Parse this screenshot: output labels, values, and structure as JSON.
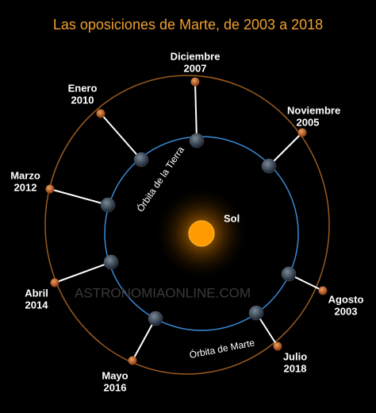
{
  "title": "Las oposiciones de Marte, de 2003 a 2018",
  "sun_label": "Sol",
  "earth_orbit_label": "Órbita de la Tierra",
  "mars_orbit_label": "Órbita de Marte",
  "watermark": "ASTRONOMIAONLINE.COM",
  "oppositions": [
    {
      "month": "Diciembre",
      "year": "2007"
    },
    {
      "month": "Noviembre",
      "year": "2005"
    },
    {
      "month": "Agosto",
      "year": "2003"
    },
    {
      "month": "Julio",
      "year": "2018"
    },
    {
      "month": "Mayo",
      "year": "2016"
    },
    {
      "month": "Abril",
      "year": "2014"
    },
    {
      "month": "Marzo",
      "year": "2012"
    },
    {
      "month": "Enero",
      "year": "2010"
    }
  ]
}
